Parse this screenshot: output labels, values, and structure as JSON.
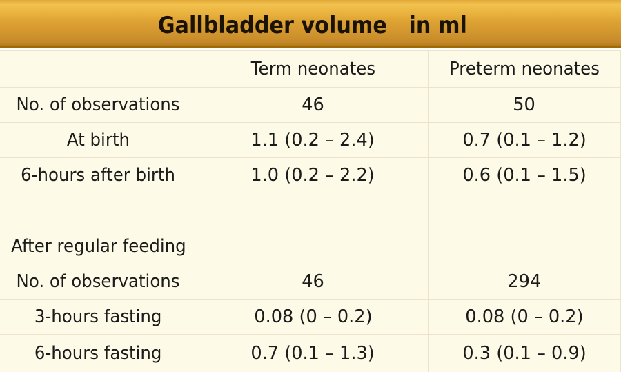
{
  "slide": {
    "title": "Gallbladder volume   in ml"
  },
  "chart_data": {
    "type": "table",
    "title": "Gallbladder volume in ml",
    "unit": "ml",
    "columns": [
      "",
      "Term neonates",
      "Preterm neonates"
    ],
    "rows": [
      [
        "No. of observations",
        "46",
        "50"
      ],
      [
        "At birth",
        "1.1 (0.2 – 2.4)",
        "0.7 (0.1 – 1.2)"
      ],
      [
        "6-hours after birth",
        "1.0 (0.2 – 2.2)",
        "0.6 (0.1 – 1.5)"
      ],
      [
        "",
        "",
        ""
      ],
      [
        "After regular feeding",
        "",
        ""
      ],
      [
        "No. of observations",
        "46",
        "294"
      ],
      [
        "3-hours fasting",
        "0.08 (0 – 0.2)",
        "0.08 (0 – 0.2)"
      ],
      [
        "6-hours fasting",
        "0.7 (0.1 – 1.3)",
        "0.3 (0.1 – 0.9)"
      ]
    ]
  },
  "colors": {
    "banner_gold_light": "#F2C24E",
    "banner_gold_dark": "#C08122",
    "banner_edge": "#9D6906",
    "table_background": "#FDFBE7",
    "grid_line": "#EDE3CC",
    "top_line": "#F1DCBE",
    "title_text": "#1A1205",
    "body_text": "#1B1B1B"
  }
}
